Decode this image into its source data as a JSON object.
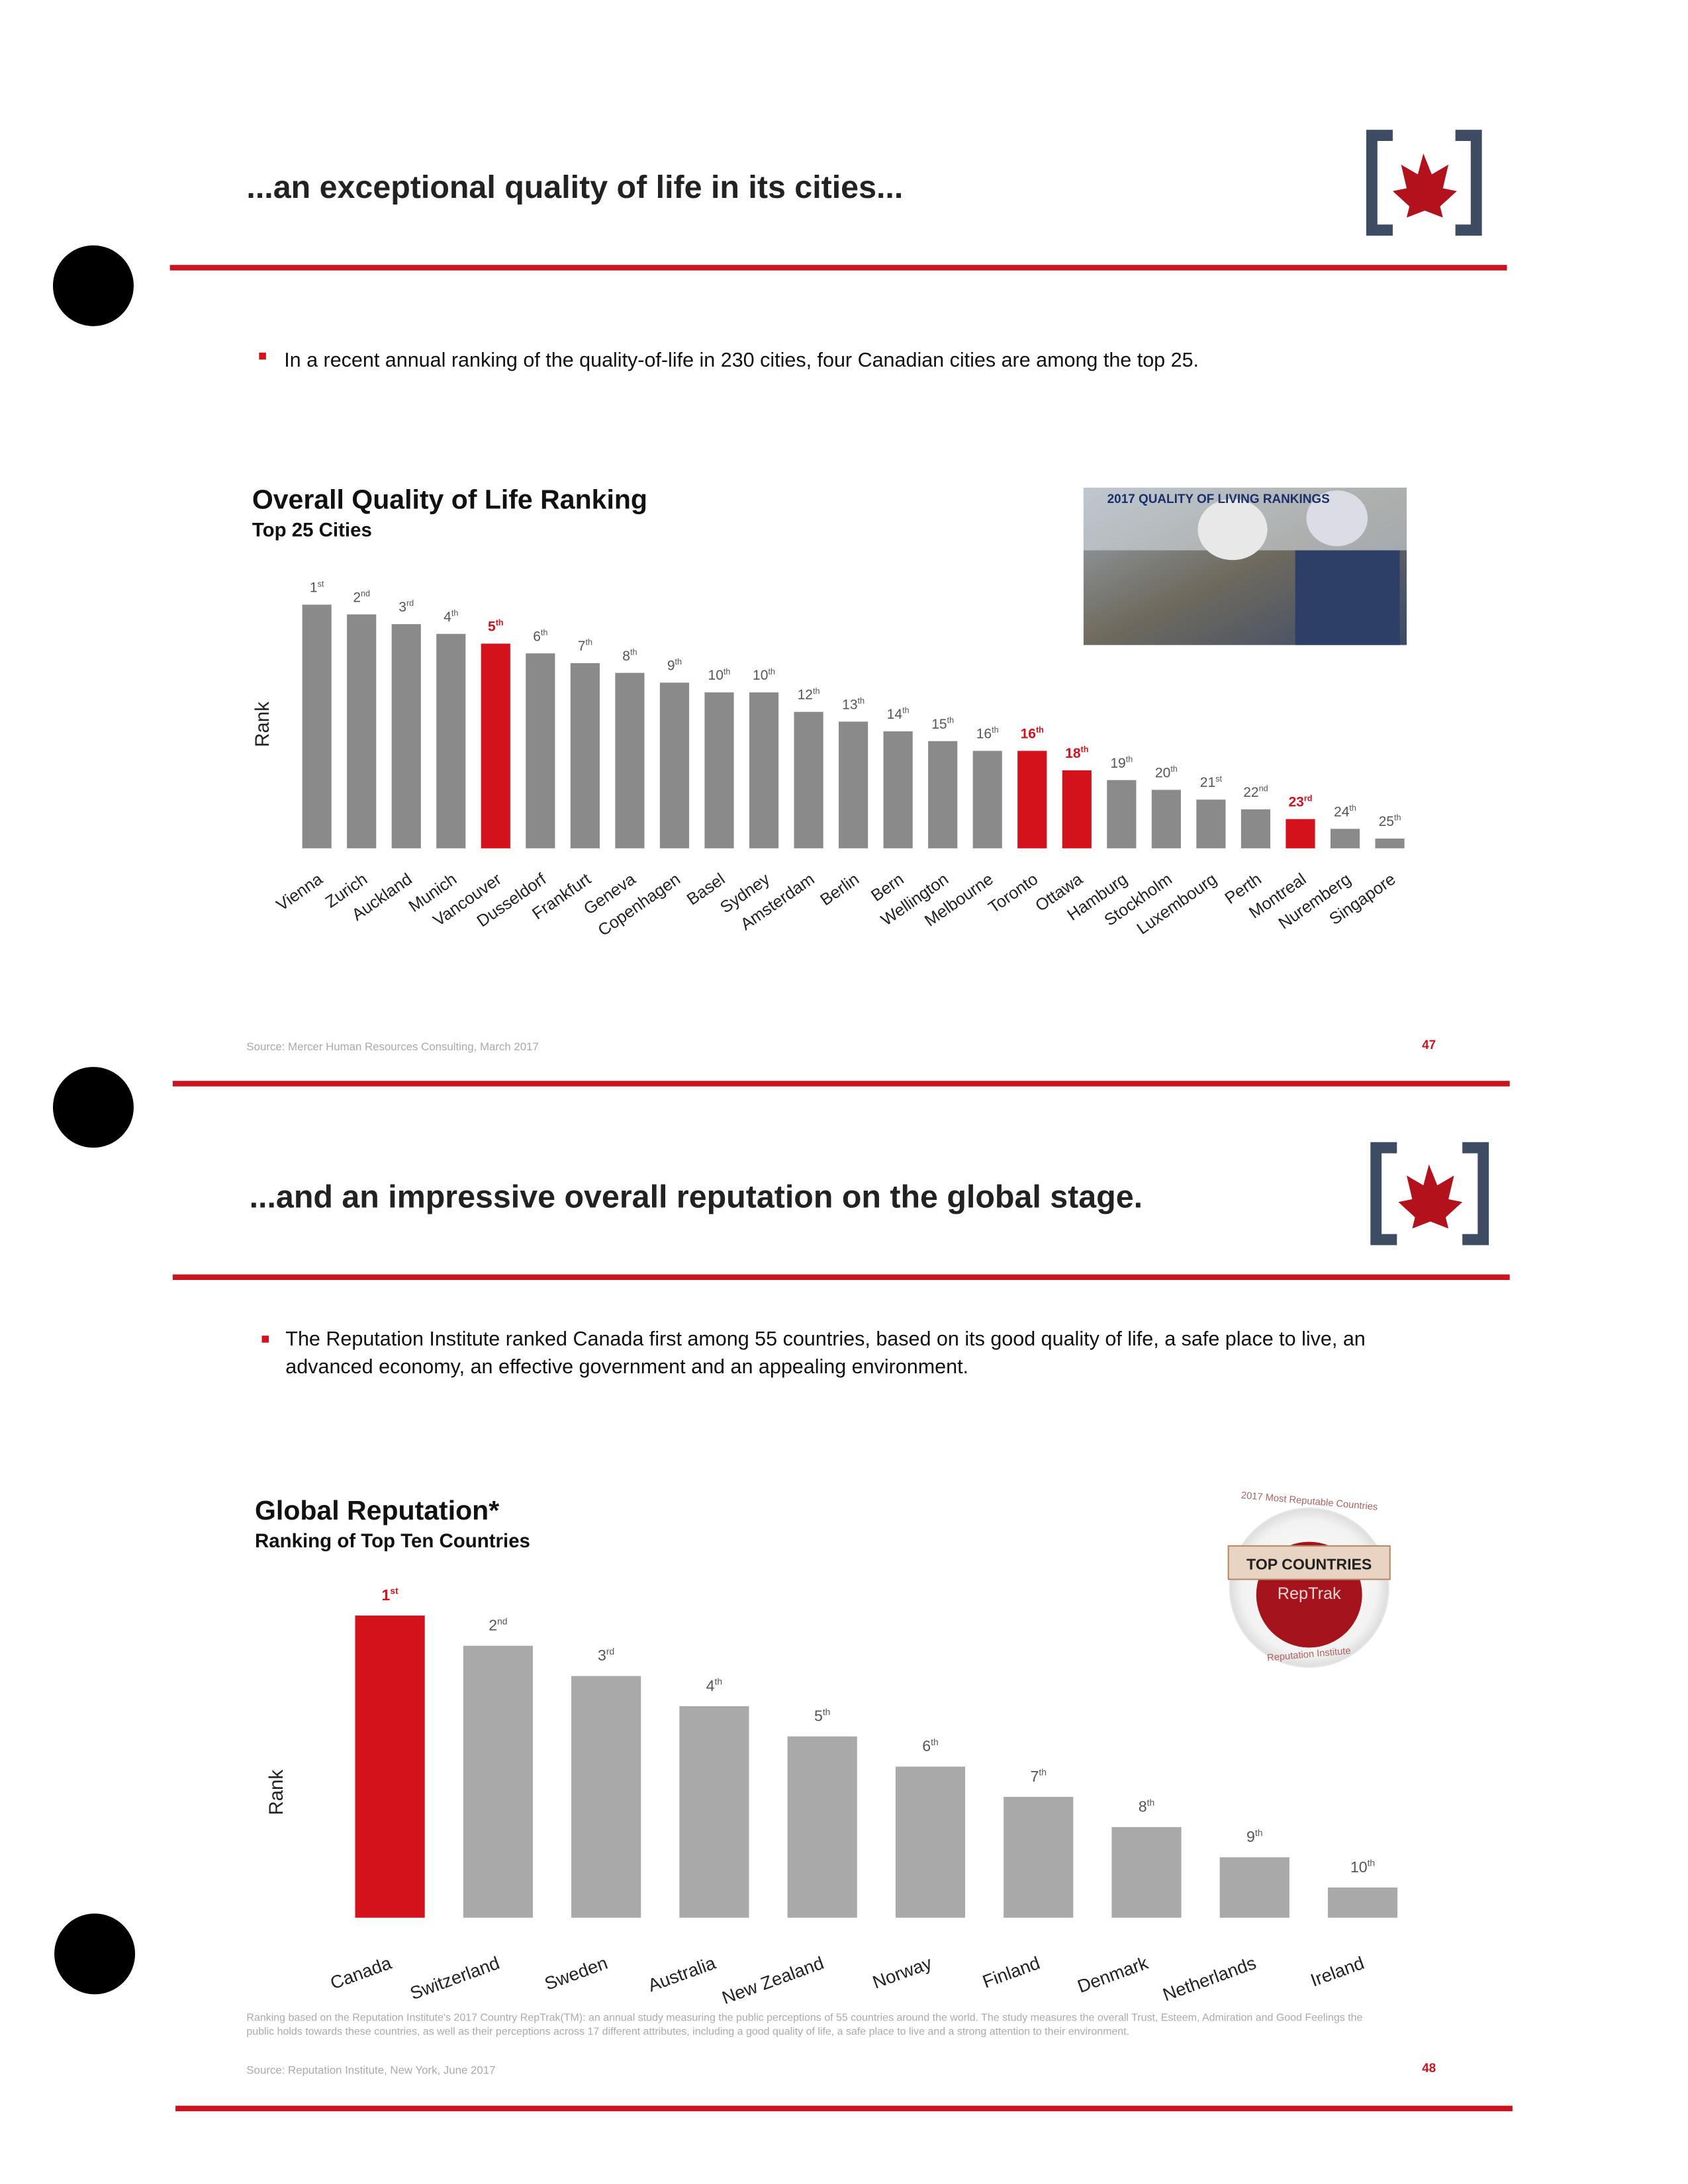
{
  "slides": [
    {
      "title": "...an exceptional quality of life in its cities...",
      "bullet": "In a recent annual ranking of the quality-of-life in 230 cities, four Canadian cities are among the top 25.",
      "image_caption": "2017 QUALITY OF LIVING RANKINGS",
      "source": "Source: Mercer Human Resources Consulting, March 2017",
      "page_number": "47"
    },
    {
      "title": "...and an impressive overall reputation on the global stage.",
      "bullet": "The Reputation Institute ranked Canada first among 55 countries, based on its good quality of life, a safe place to live, an advanced economy, an effective government and an appealing environment.",
      "badge_arc_top": "2017 Most Reputable Countries",
      "badge_main": "TOP COUNTRIES",
      "badge_brand": "RepTrak",
      "badge_arc_bottom": "Reputation Institute",
      "footnote": "Ranking based on the Reputation Institute's 2017 Country RepTrak(TM): an annual study measuring the public perceptions of 55 countries around the world. The study measures the overall Trust, Esteem, Admiration and Good Feelings the public holds towards these countries, as well as their perceptions across 17 different attributes, including a good quality of life, a safe place to live and a strong attention to their environment.",
      "source": "Source: Reputation Institute, New York, June 2017",
      "page_number": "48"
    }
  ],
  "chart_data": [
    {
      "type": "bar",
      "title": "Overall Quality of Life Ranking",
      "subtitle": "Top 25 Cities",
      "y_label": "Rank",
      "categories": [
        "Vienna",
        "Zurich",
        "Auckland",
        "Munich",
        "Vancouver",
        "Dusseldorf",
        "Frankfurt",
        "Geneva",
        "Copenhagen",
        "Basel",
        "Sydney",
        "Amsterdam",
        "Berlin",
        "Bern",
        "Wellington",
        "Melbourne",
        "Toronto",
        "Ottawa",
        "Hamburg",
        "Stockholm",
        "Luxembourg",
        "Perth",
        "Montreal",
        "Nuremberg",
        "Singapore"
      ],
      "values": [
        1,
        2,
        3,
        4,
        5,
        6,
        7,
        8,
        9,
        10,
        10,
        12,
        13,
        14,
        15,
        16,
        16,
        18,
        19,
        20,
        21,
        22,
        23,
        24,
        25
      ],
      "value_labels": [
        "1st",
        "2nd",
        "3rd",
        "4th",
        "5th",
        "6th",
        "7th",
        "8th",
        "9th",
        "10th",
        "10th",
        "12th",
        "13th",
        "14th",
        "15th",
        "16th",
        "16th",
        "18th",
        "19th",
        "20th",
        "21st",
        "22nd",
        "23rd",
        "24th",
        "25th"
      ],
      "colors": [
        "#8a8a8a",
        "#8a8a8a",
        "#8a8a8a",
        "#8a8a8a",
        "#d4121c",
        "#8a8a8a",
        "#8a8a8a",
        "#8a8a8a",
        "#8a8a8a",
        "#8a8a8a",
        "#8a8a8a",
        "#8a8a8a",
        "#8a8a8a",
        "#8a8a8a",
        "#8a8a8a",
        "#8a8a8a",
        "#d4121c",
        "#d4121c",
        "#8a8a8a",
        "#8a8a8a",
        "#8a8a8a",
        "#8a8a8a",
        "#d4121c",
        "#8a8a8a",
        "#8a8a8a"
      ]
    },
    {
      "type": "bar",
      "title": "Global Reputation*",
      "subtitle": "Ranking of Top Ten Countries",
      "y_label": "Rank",
      "categories": [
        "Canada",
        "Switzerland",
        "Sweden",
        "Australia",
        "New Zealand",
        "Norway",
        "Finland",
        "Denmark",
        "Netherlands",
        "Ireland"
      ],
      "values": [
        1,
        2,
        3,
        4,
        5,
        6,
        7,
        8,
        9,
        10
      ],
      "value_labels": [
        "1st",
        "2nd",
        "3rd",
        "4th",
        "5th",
        "6th",
        "7th",
        "8th",
        "9th",
        "10th"
      ],
      "colors": [
        "#d4121c",
        "#a9a9a9",
        "#a9a9a9",
        "#a9a9a9",
        "#a9a9a9",
        "#a9a9a9",
        "#a9a9a9",
        "#a9a9a9",
        "#a9a9a9",
        "#a9a9a9"
      ]
    }
  ]
}
